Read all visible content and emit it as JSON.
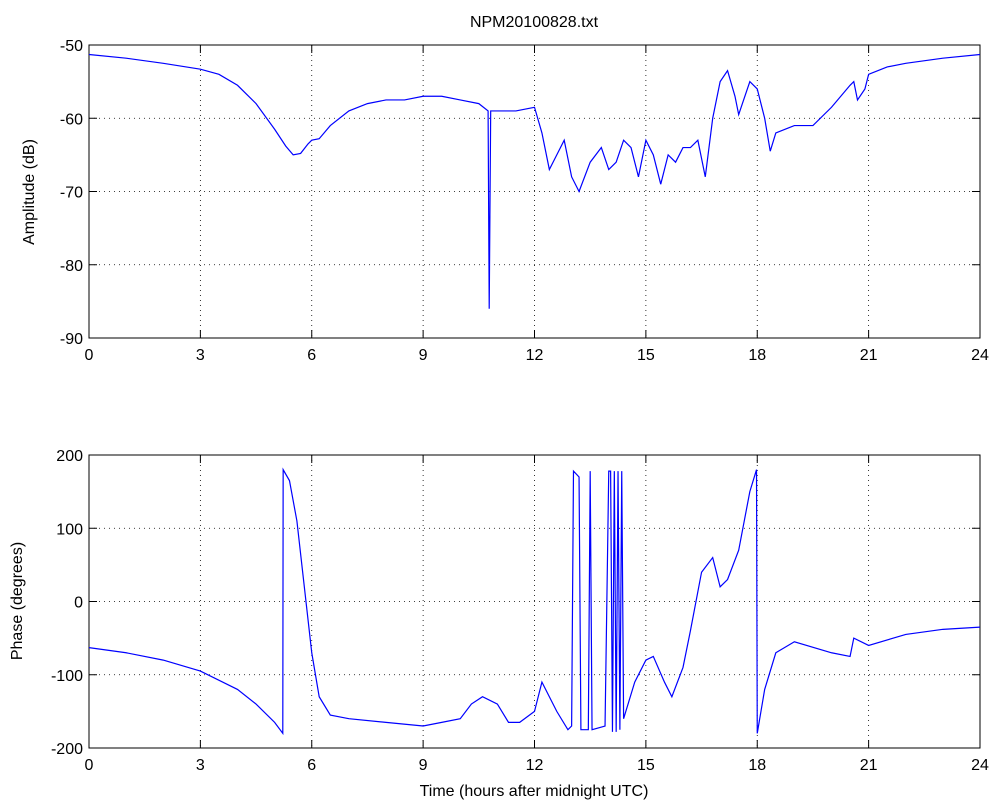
{
  "chart_data": [
    {
      "type": "line",
      "title": "NPM20100828.txt",
      "y_label": "Amplitude (dB)",
      "grid": true,
      "xlim": [
        0,
        24
      ],
      "xticks": [
        0,
        3,
        6,
        9,
        12,
        15,
        18,
        21,
        24
      ],
      "ylim": [
        -90,
        -50
      ],
      "yticks": [
        -90,
        -80,
        -70,
        -60,
        -50
      ],
      "series": [
        {
          "color": "#0000ff",
          "x": [
            0,
            1,
            2,
            3,
            3.5,
            4,
            4.5,
            5,
            5.3,
            5.5,
            5.7,
            5.9,
            6,
            6.2,
            6.5,
            7,
            7.5,
            8,
            8.5,
            9,
            9.5,
            10,
            10.5,
            10.75,
            10.78,
            10.82,
            11,
            11.5,
            12,
            12.2,
            12.4,
            12.6,
            12.8,
            13,
            13.2,
            13.5,
            13.8,
            14,
            14.2,
            14.4,
            14.6,
            14.8,
            15,
            15.2,
            15.4,
            15.6,
            15.8,
            16,
            16.2,
            16.4,
            16.6,
            16.8,
            17,
            17.2,
            17.4,
            17.5,
            17.6,
            17.8,
            18,
            18.2,
            18.35,
            18.5,
            19,
            19.5,
            20,
            20.5,
            20.6,
            20.7,
            20.9,
            21,
            21.5,
            22,
            23,
            24
          ],
          "values": [
            -51.3,
            -51.8,
            -52.5,
            -53.3,
            -54,
            -55.5,
            -58,
            -61.5,
            -63.8,
            -65,
            -64.8,
            -63.5,
            -63,
            -62.8,
            -61,
            -59,
            -58,
            -57.5,
            -57.5,
            -57,
            -57,
            -57.5,
            -58,
            -59,
            -86,
            -59,
            -59,
            -59,
            -58.5,
            -62,
            -67,
            -65,
            -63,
            -68,
            -70,
            -66,
            -64,
            -67,
            -66,
            -63,
            -64,
            -68,
            -63,
            -65,
            -69,
            -65,
            -66,
            -64,
            -64,
            -63,
            -68,
            -60,
            -55,
            -53.5,
            -57,
            -59.5,
            -58,
            -55,
            -56,
            -60,
            -64.5,
            -62,
            -61,
            -61,
            -58.5,
            -55.5,
            -55,
            -57.5,
            -56,
            -54,
            -53,
            -52.5,
            -51.8,
            -51.3
          ]
        }
      ]
    },
    {
      "type": "line",
      "y_label": "Phase (degrees)",
      "x_label": "Time (hours after midnight UTC)",
      "grid": true,
      "xlim": [
        0,
        24
      ],
      "xticks": [
        0,
        3,
        6,
        9,
        12,
        15,
        18,
        21,
        24
      ],
      "ylim": [
        -200,
        200
      ],
      "yticks": [
        -200,
        -100,
        0,
        100,
        200
      ],
      "series": [
        {
          "color": "#0000ff",
          "x": [
            0,
            1,
            2,
            3,
            4,
            4.5,
            5,
            5.22,
            5.23,
            5.4,
            5.6,
            5.8,
            6,
            6.2,
            6.5,
            7,
            8,
            9,
            9.5,
            10,
            10.3,
            10.6,
            11,
            11.3,
            11.6,
            12,
            12.2,
            12.4,
            12.6,
            12.9,
            13.0,
            13.05,
            13.2,
            13.25,
            13.45,
            13.5,
            13.55,
            13.9,
            14.0,
            14.05,
            14.1,
            14.15,
            14.2,
            14.25,
            14.3,
            14.35,
            14.4,
            14.7,
            15,
            15.2,
            15.5,
            15.7,
            16,
            16.2,
            16.5,
            16.8,
            17,
            17.2,
            17.5,
            17.8,
            17.98,
            18.0,
            18.2,
            18.5,
            19,
            20,
            20.5,
            20.6,
            21,
            22,
            23,
            24
          ],
          "values": [
            -63,
            -70,
            -80,
            -95,
            -120,
            -140,
            -165,
            -180,
            180,
            165,
            110,
            20,
            -70,
            -130,
            -155,
            -160,
            -165,
            -170,
            -165,
            -160,
            -140,
            -130,
            -140,
            -165,
            -165,
            -150,
            -110,
            -130,
            -150,
            -175,
            -170,
            178,
            170,
            -175,
            -175,
            178,
            -175,
            -170,
            178,
            178,
            -178,
            178,
            -178,
            178,
            -175,
            178,
            -160,
            -110,
            -80,
            -75,
            -110,
            -130,
            -90,
            -40,
            40,
            60,
            20,
            30,
            70,
            150,
            180,
            -180,
            -120,
            -70,
            -55,
            -70,
            -75,
            -50,
            -60,
            -45,
            -38,
            -35
          ]
        }
      ]
    }
  ]
}
